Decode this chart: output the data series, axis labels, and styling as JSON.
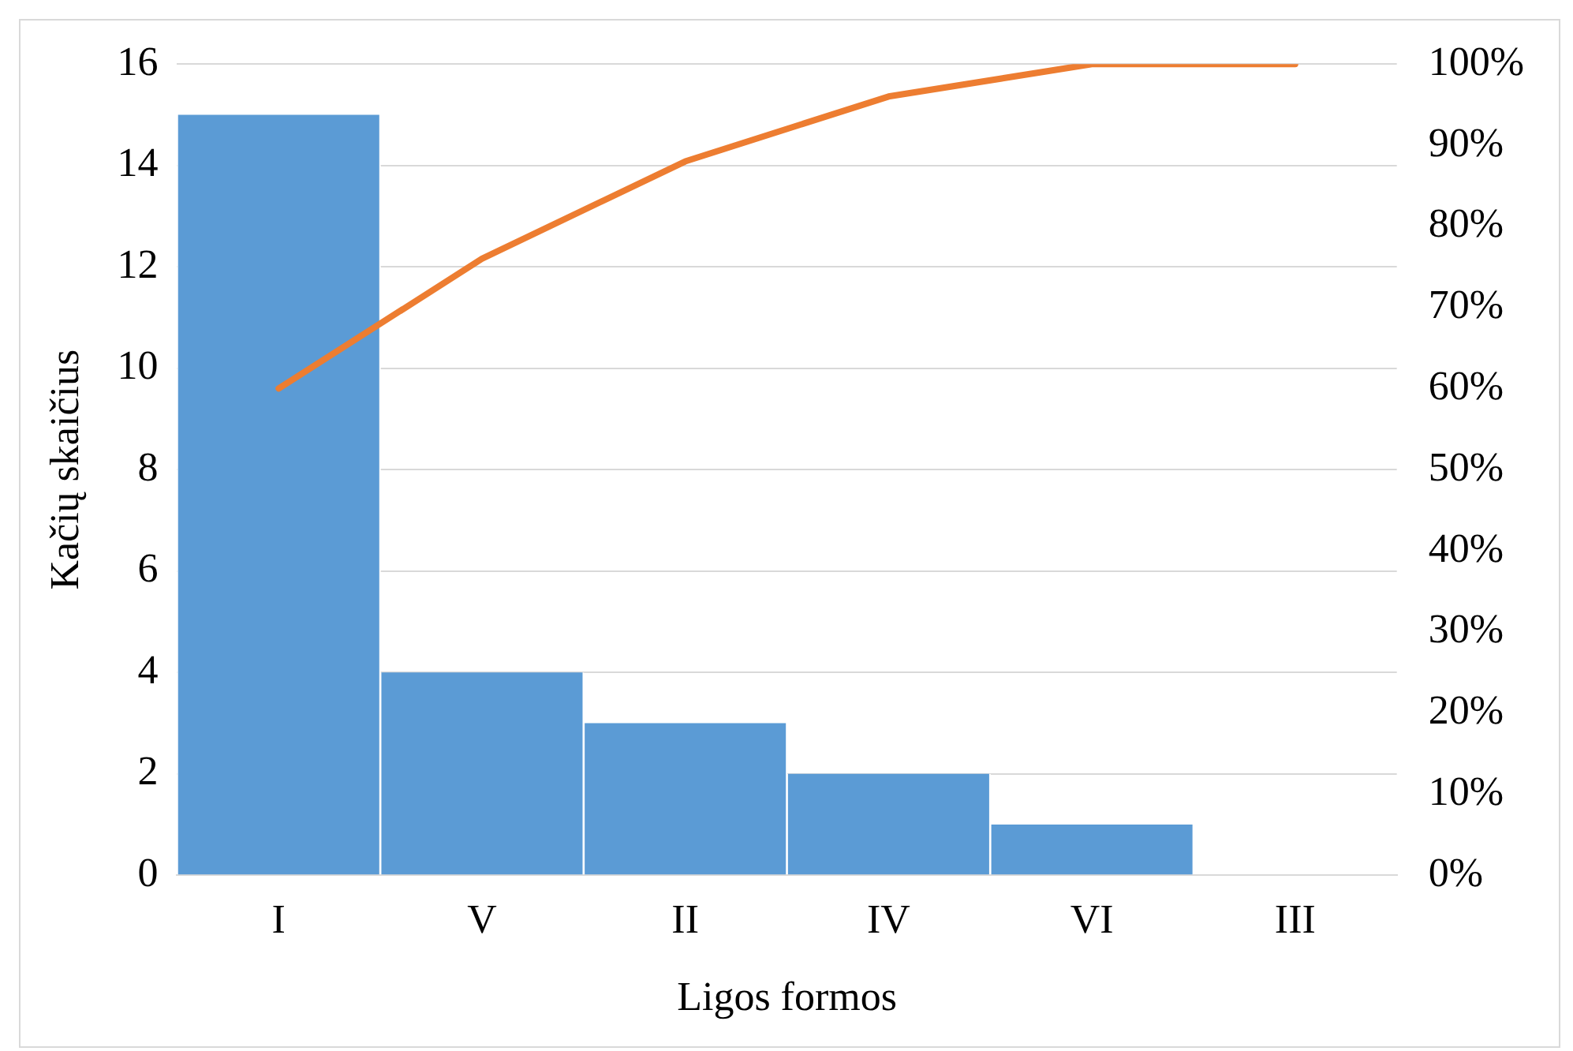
{
  "chart_data": {
    "type": "bar",
    "xlabel": "Ligos formos",
    "ylabel": "Kačių skaičius",
    "categories": [
      "I",
      "V",
      "II",
      "IV",
      "VI",
      "III"
    ],
    "series": [
      {
        "color": "#5b9bd5",
        "values": [
          15,
          4,
          3,
          2,
          1,
          0
        ]
      },
      {
        "type": "line",
        "axis": "y2",
        "color": "#ed7d31",
        "values": [
          60,
          76,
          88,
          96,
          100,
          100
        ]
      }
    ],
    "ylim": [
      0,
      16
    ],
    "yticks": [
      0,
      2,
      4,
      6,
      8,
      10,
      12,
      14,
      16
    ],
    "y2lim": [
      0,
      100
    ],
    "y2ticks": [
      {
        "value": 0,
        "label": "0%"
      },
      {
        "value": 10,
        "label": "10%"
      },
      {
        "value": 20,
        "label": "20%"
      },
      {
        "value": 30,
        "label": "30%"
      },
      {
        "value": 40,
        "label": "40%"
      },
      {
        "value": 50,
        "label": "50%"
      },
      {
        "value": 60,
        "label": "60%"
      },
      {
        "value": 70,
        "label": "70%"
      },
      {
        "value": 80,
        "label": "80%"
      },
      {
        "value": 90,
        "label": "90%"
      },
      {
        "value": 100,
        "label": "100%"
      }
    ],
    "grid": "y",
    "legend": false,
    "marker": "none"
  }
}
